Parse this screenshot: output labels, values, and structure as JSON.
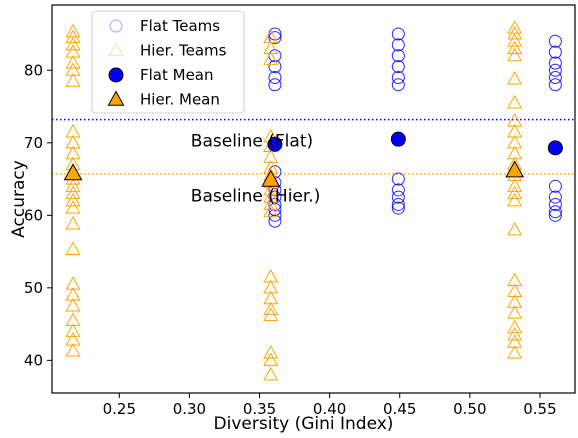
{
  "chart_data": {
    "type": "scatter",
    "xlabel": "Diversity (Gini Index)",
    "ylabel": "Accuracy",
    "xlim": [
      0.202,
      0.575
    ],
    "ylim": [
      35.5,
      89
    ],
    "xticks": [
      0.25,
      0.3,
      0.35,
      0.4,
      0.45,
      0.5,
      0.55
    ],
    "xtick_labels": [
      "0.25",
      "0.30",
      "0.35",
      "0.40",
      "0.45",
      "0.50",
      "0.55"
    ],
    "yticks": [
      40,
      50,
      60,
      70,
      80
    ],
    "ytick_labels": [
      "40",
      "50",
      "60",
      "70",
      "80"
    ],
    "grid": false,
    "legend_position": "top-left",
    "colors": {
      "flat": "#0000ff",
      "hier": "#ffa500"
    },
    "series": [
      {
        "name": "Flat Teams",
        "marker": "circle-open",
        "points": [
          {
            "x": 0.361,
            "y": 85.0
          },
          {
            "x": 0.361,
            "y": 84.5
          },
          {
            "x": 0.361,
            "y": 82.0
          },
          {
            "x": 0.361,
            "y": 80.5
          },
          {
            "x": 0.361,
            "y": 79.0
          },
          {
            "x": 0.361,
            "y": 78.0
          },
          {
            "x": 0.361,
            "y": 66.0
          },
          {
            "x": 0.361,
            "y": 64.5
          },
          {
            "x": 0.361,
            "y": 63.5
          },
          {
            "x": 0.361,
            "y": 62.5
          },
          {
            "x": 0.361,
            "y": 61.5
          },
          {
            "x": 0.361,
            "y": 60.8
          },
          {
            "x": 0.361,
            "y": 60.0
          },
          {
            "x": 0.361,
            "y": 59.2
          },
          {
            "x": 0.449,
            "y": 85.0
          },
          {
            "x": 0.449,
            "y": 83.5
          },
          {
            "x": 0.449,
            "y": 82.0
          },
          {
            "x": 0.449,
            "y": 80.5
          },
          {
            "x": 0.449,
            "y": 79.0
          },
          {
            "x": 0.449,
            "y": 78.0
          },
          {
            "x": 0.449,
            "y": 65.0
          },
          {
            "x": 0.449,
            "y": 63.5
          },
          {
            "x": 0.449,
            "y": 62.5
          },
          {
            "x": 0.449,
            "y": 61.5
          },
          {
            "x": 0.449,
            "y": 61.0
          },
          {
            "x": 0.561,
            "y": 84.0
          },
          {
            "x": 0.561,
            "y": 82.5
          },
          {
            "x": 0.561,
            "y": 81.0
          },
          {
            "x": 0.561,
            "y": 80.0
          },
          {
            "x": 0.561,
            "y": 79.0
          },
          {
            "x": 0.561,
            "y": 78.0
          },
          {
            "x": 0.561,
            "y": 64.0
          },
          {
            "x": 0.561,
            "y": 62.5
          },
          {
            "x": 0.561,
            "y": 61.5
          },
          {
            "x": 0.561,
            "y": 60.5
          },
          {
            "x": 0.561,
            "y": 60.0
          }
        ]
      },
      {
        "name": "Hier. Teams",
        "marker": "triangle-open",
        "points": [
          {
            "x": 0.217,
            "y": 85.3
          },
          {
            "x": 0.217,
            "y": 84.5
          },
          {
            "x": 0.217,
            "y": 83.5
          },
          {
            "x": 0.217,
            "y": 82.5
          },
          {
            "x": 0.217,
            "y": 81.0
          },
          {
            "x": 0.217,
            "y": 80.0
          },
          {
            "x": 0.217,
            "y": 78.5
          },
          {
            "x": 0.217,
            "y": 71.5
          },
          {
            "x": 0.217,
            "y": 70.0
          },
          {
            "x": 0.217,
            "y": 68.5
          },
          {
            "x": 0.217,
            "y": 67.0
          },
          {
            "x": 0.217,
            "y": 66.0
          },
          {
            "x": 0.217,
            "y": 65.0
          },
          {
            "x": 0.217,
            "y": 64.0
          },
          {
            "x": 0.217,
            "y": 63.0
          },
          {
            "x": 0.217,
            "y": 62.0
          },
          {
            "x": 0.217,
            "y": 61.0
          },
          {
            "x": 0.217,
            "y": 58.8
          },
          {
            "x": 0.217,
            "y": 55.3
          },
          {
            "x": 0.217,
            "y": 50.5
          },
          {
            "x": 0.217,
            "y": 49.0
          },
          {
            "x": 0.217,
            "y": 47.5
          },
          {
            "x": 0.217,
            "y": 45.5
          },
          {
            "x": 0.217,
            "y": 44.0
          },
          {
            "x": 0.217,
            "y": 42.8
          },
          {
            "x": 0.217,
            "y": 41.3
          },
          {
            "x": 0.358,
            "y": 84.5
          },
          {
            "x": 0.358,
            "y": 83.0
          },
          {
            "x": 0.358,
            "y": 81.5
          },
          {
            "x": 0.358,
            "y": 70.8
          },
          {
            "x": 0.358,
            "y": 69.5
          },
          {
            "x": 0.358,
            "y": 68.0
          },
          {
            "x": 0.358,
            "y": 66.5
          },
          {
            "x": 0.358,
            "y": 65.5
          },
          {
            "x": 0.358,
            "y": 64.5
          },
          {
            "x": 0.358,
            "y": 63.5
          },
          {
            "x": 0.358,
            "y": 62.5
          },
          {
            "x": 0.358,
            "y": 61.5
          },
          {
            "x": 0.358,
            "y": 60.5
          },
          {
            "x": 0.358,
            "y": 51.5
          },
          {
            "x": 0.358,
            "y": 50.0
          },
          {
            "x": 0.358,
            "y": 48.5
          },
          {
            "x": 0.358,
            "y": 47.0
          },
          {
            "x": 0.358,
            "y": 46.2
          },
          {
            "x": 0.358,
            "y": 41.0
          },
          {
            "x": 0.358,
            "y": 40.0
          },
          {
            "x": 0.358,
            "y": 38.0
          },
          {
            "x": 0.532,
            "y": 85.8
          },
          {
            "x": 0.532,
            "y": 85.0
          },
          {
            "x": 0.532,
            "y": 84.0
          },
          {
            "x": 0.532,
            "y": 83.0
          },
          {
            "x": 0.532,
            "y": 82.0
          },
          {
            "x": 0.532,
            "y": 78.8
          },
          {
            "x": 0.532,
            "y": 75.5
          },
          {
            "x": 0.532,
            "y": 73.0
          },
          {
            "x": 0.532,
            "y": 71.5
          },
          {
            "x": 0.532,
            "y": 70.0
          },
          {
            "x": 0.532,
            "y": 68.5
          },
          {
            "x": 0.532,
            "y": 67.0
          },
          {
            "x": 0.532,
            "y": 65.5
          },
          {
            "x": 0.532,
            "y": 64.0
          },
          {
            "x": 0.532,
            "y": 63.0
          },
          {
            "x": 0.532,
            "y": 62.0
          },
          {
            "x": 0.532,
            "y": 58.0
          },
          {
            "x": 0.532,
            "y": 51.0
          },
          {
            "x": 0.532,
            "y": 49.5
          },
          {
            "x": 0.532,
            "y": 48.0
          },
          {
            "x": 0.532,
            "y": 46.5
          },
          {
            "x": 0.532,
            "y": 44.5
          },
          {
            "x": 0.532,
            "y": 43.5
          },
          {
            "x": 0.532,
            "y": 42.5
          },
          {
            "x": 0.532,
            "y": 41.0
          }
        ]
      },
      {
        "name": "Flat Mean",
        "marker": "circle-filled",
        "points": [
          {
            "x": 0.361,
            "y": 69.8
          },
          {
            "x": 0.449,
            "y": 70.5
          },
          {
            "x": 0.561,
            "y": 69.3
          }
        ]
      },
      {
        "name": "Hier. Mean",
        "marker": "triangle-filled",
        "points": [
          {
            "x": 0.217,
            "y": 65.8
          },
          {
            "x": 0.358,
            "y": 64.9
          },
          {
            "x": 0.532,
            "y": 66.2
          }
        ]
      }
    ],
    "reference_lines": [
      {
        "label": "Baseline (Flat)",
        "y": 73.2,
        "color": "#0000ff",
        "style": "dotted"
      },
      {
        "label": "Baseline (Hier.)",
        "y": 65.7,
        "color": "#ffa500",
        "style": "dotted"
      }
    ],
    "annotations": [
      {
        "text": "Baseline (Flat)",
        "x": 0.301,
        "y": 70.3
      },
      {
        "text": "Baseline (Hier.)",
        "x": 0.301,
        "y": 62.7
      }
    ]
  }
}
